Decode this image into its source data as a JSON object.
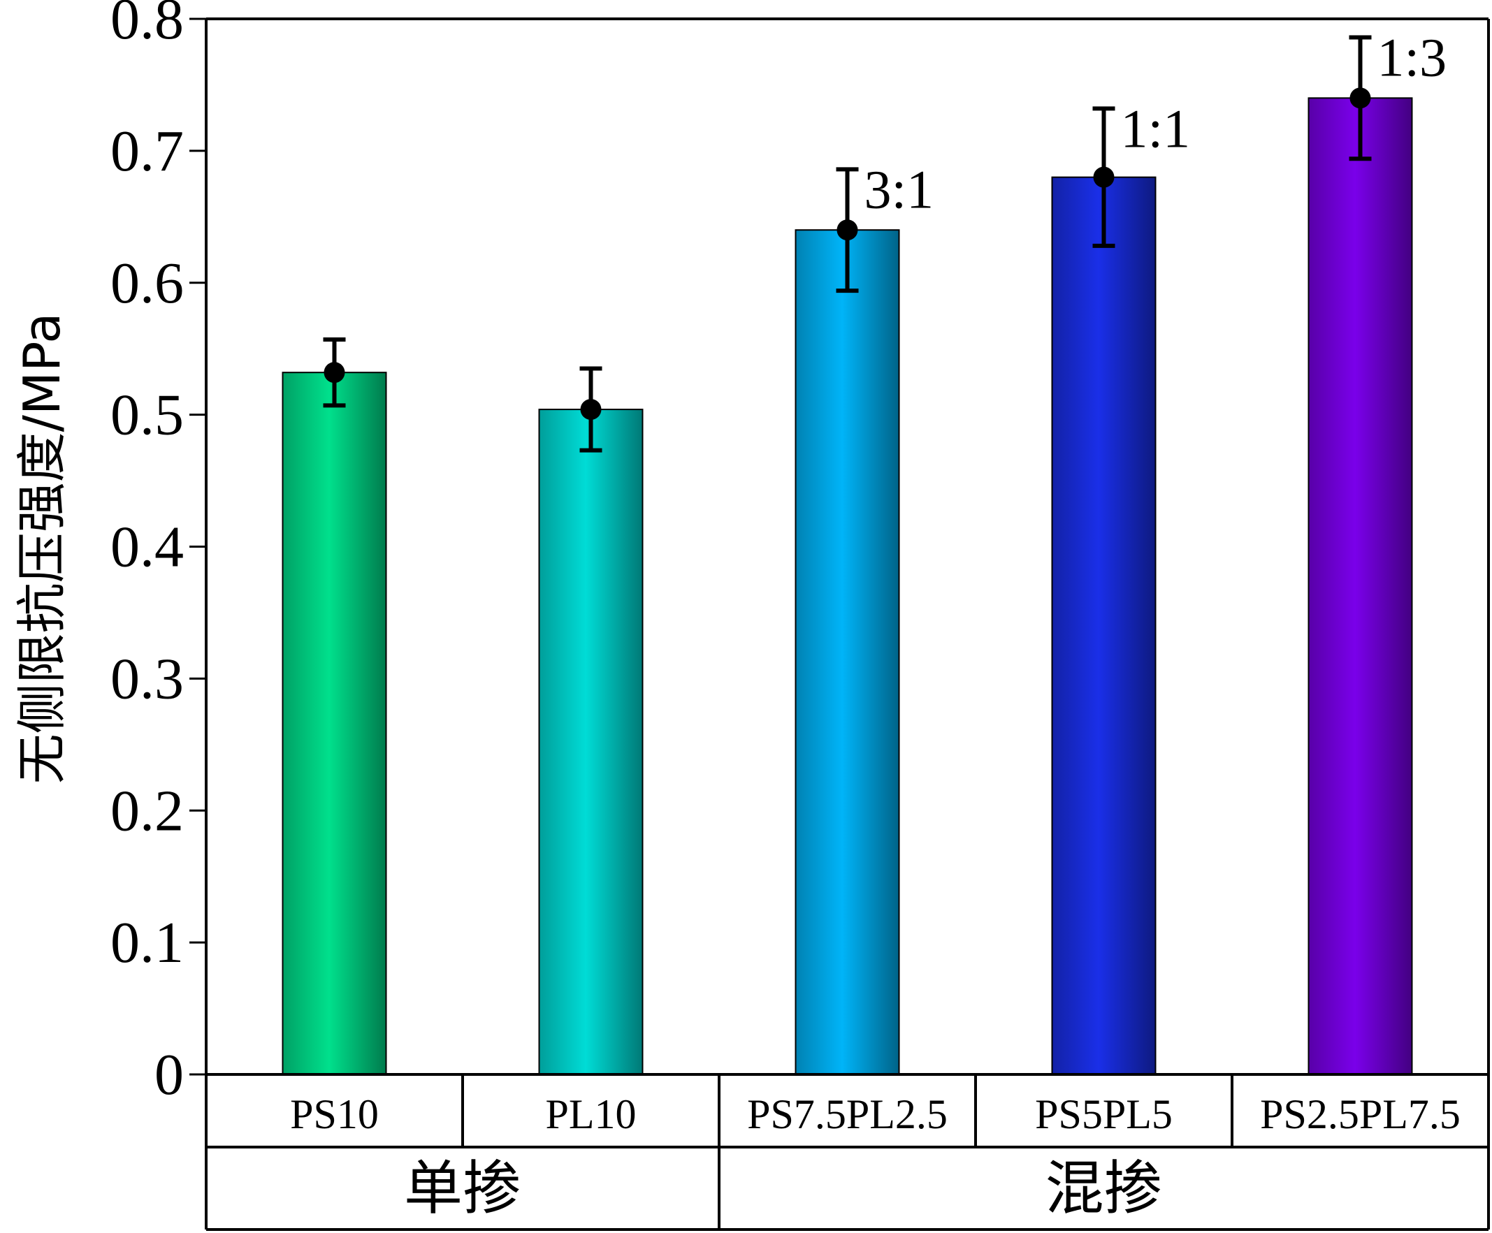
{
  "chart_data": {
    "type": "bar",
    "ylabel": "无侧限抗压强度/MPa",
    "xlabel": "",
    "ylim": [
      0,
      0.8
    ],
    "yticks": [
      "0",
      "0.1",
      "0.2",
      "0.3",
      "0.4",
      "0.5",
      "0.6",
      "0.7",
      "0.8"
    ],
    "categories": [
      "PS10",
      "PL10",
      "PS7.5PL2.5",
      "PS5PL5",
      "PS2.5PL7.5"
    ],
    "values": [
      0.532,
      0.504,
      0.64,
      0.68,
      0.74
    ],
    "errors": [
      0.025,
      0.031,
      0.046,
      0.052,
      0.046
    ],
    "annotations": [
      "",
      "",
      "3:1",
      "1:1",
      "1:3"
    ],
    "groups": [
      {
        "label": "单掺",
        "span": [
          0,
          1
        ]
      },
      {
        "label": "混掺",
        "span": [
          2,
          4
        ]
      }
    ],
    "colors": [
      "#00e08c",
      "#00dcd6",
      "#00b4f8",
      "#1a2fe8",
      "#7a00ea"
    ],
    "grid": false,
    "legend": "none"
  }
}
